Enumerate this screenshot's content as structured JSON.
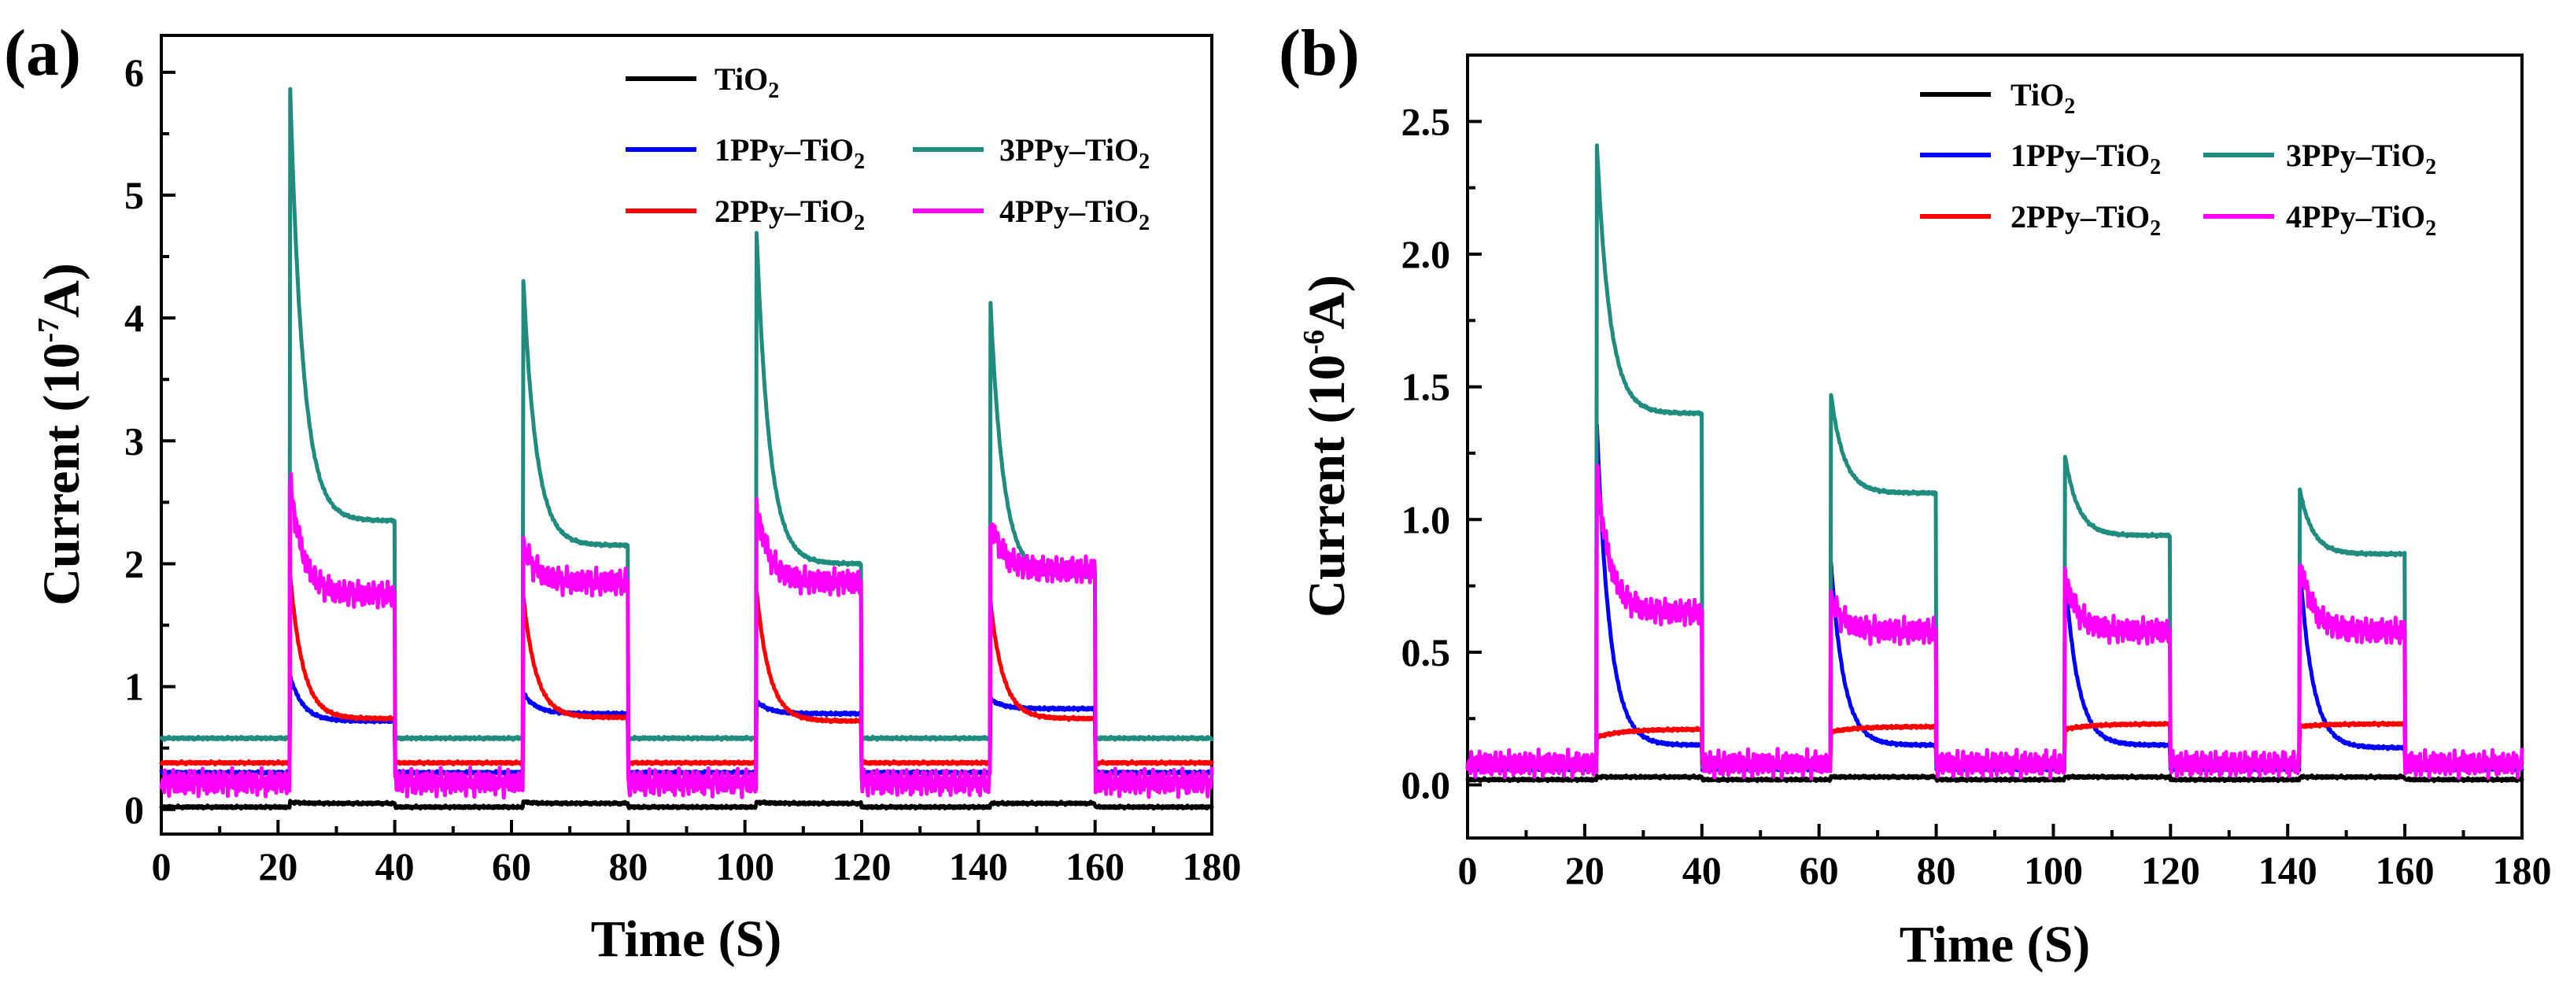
{
  "chart_data": [
    {
      "panel": "(a)",
      "type": "line",
      "xlabel": "Time (S)",
      "ylabel": "Current (10⁻⁷A)",
      "xlim": [
        0,
        180
      ],
      "ylim": [
        -0.2,
        6.3
      ],
      "xticks": [
        "0",
        "20",
        "40",
        "60",
        "80",
        "100",
        "120",
        "140",
        "160",
        "180"
      ],
      "yticks": [
        "0",
        "1",
        "2",
        "3",
        "4",
        "5",
        "6"
      ],
      "light_on_intervals": [
        [
          22,
          40
        ],
        [
          62,
          80
        ],
        [
          102,
          120
        ],
        [
          142,
          160
        ]
      ],
      "legend": [
        "TiO₂",
        "1PPy–TiO₂",
        "3PPy–TiO₂",
        "2PPy–TiO₂",
        "4PPy–TiO₂"
      ],
      "series": [
        {
          "name": "TiO₂",
          "color": "#000000",
          "baseline": 0.02,
          "cycles": [
            {
              "peak": 0.06,
              "end": 0.05
            },
            {
              "peak": 0.06,
              "end": 0.05
            },
            {
              "peak": 0.06,
              "end": 0.05
            },
            {
              "peak": 0.05,
              "end": 0.05
            }
          ]
        },
        {
          "name": "1PPy–TiO₂",
          "color": "#0000ff",
          "baseline": 0.3,
          "cycles": [
            {
              "peak": 1.1,
              "end": 0.72
            },
            {
              "peak": 0.95,
              "end": 0.78
            },
            {
              "peak": 0.88,
              "end": 0.78
            },
            {
              "peak": 0.9,
              "end": 0.82
            }
          ]
        },
        {
          "name": "3PPy–TiO₂",
          "color": "#1f8c7e",
          "baseline": 0.58,
          "cycles": [
            {
              "peak": 6.0,
              "end": 2.35
            },
            {
              "peak": 4.35,
              "end": 2.15
            },
            {
              "peak": 4.7,
              "end": 2.0
            },
            {
              "peak": 4.2,
              "end": 1.9
            }
          ]
        },
        {
          "name": "2PPy–TiO₂",
          "color": "#ff0000",
          "baseline": 0.38,
          "cycles": [
            {
              "peak": 1.95,
              "end": 0.74
            },
            {
              "peak": 1.75,
              "end": 0.75
            },
            {
              "peak": 1.78,
              "end": 0.72
            },
            {
              "peak": 1.72,
              "end": 0.74
            }
          ]
        },
        {
          "name": "4PPy–TiO₂",
          "color": "#ff00ff",
          "baseline": 0.22,
          "cycles": [
            {
              "peak": 2.7,
              "end": 1.75
            },
            {
              "peak": 2.15,
              "end": 1.85
            },
            {
              "peak": 2.45,
              "end": 1.85
            },
            {
              "peak": 2.35,
              "end": 1.95
            }
          ]
        }
      ]
    },
    {
      "panel": "(b)",
      "type": "line",
      "xlabel": "Time (S)",
      "ylabel": "Current (10⁻⁶A)",
      "xlim": [
        0,
        180
      ],
      "ylim": [
        -0.2,
        2.75
      ],
      "xticks": [
        "0",
        "20",
        "40",
        "60",
        "80",
        "100",
        "120",
        "140",
        "160",
        "180"
      ],
      "yticks": [
        "0.0",
        "0.5",
        "1.0",
        "1.5",
        "2.0",
        "2.5"
      ],
      "light_on_intervals": [
        [
          22,
          40
        ],
        [
          62,
          80
        ],
        [
          102,
          120
        ],
        [
          142,
          160
        ]
      ],
      "legend": [
        "TiO₂",
        "1PPy–TiO₂",
        "3PPy–TiO₂",
        "2PPy–TiO₂",
        "4PPy–TiO₂"
      ],
      "series": [
        {
          "name": "TiO₂",
          "color": "#000000",
          "baseline": 0.02,
          "cycles": [
            {
              "peak": 0.03,
              "end": 0.03
            },
            {
              "peak": 0.03,
              "end": 0.03
            },
            {
              "peak": 0.03,
              "end": 0.03
            },
            {
              "peak": 0.03,
              "end": 0.03
            }
          ]
        },
        {
          "name": "1PPy–TiO₂",
          "color": "#0000ff",
          "baseline": 0.06,
          "cycles": [
            {
              "peak": 1.4,
              "end": 0.15
            },
            {
              "peak": 0.85,
              "end": 0.15
            },
            {
              "peak": 0.8,
              "end": 0.15
            },
            {
              "peak": 0.85,
              "end": 0.14
            }
          ]
        },
        {
          "name": "3PPy–TiO₂",
          "color": "#1f8c7e",
          "baseline": 0.07,
          "cycles": [
            {
              "peak": 2.45,
              "end": 1.4
            },
            {
              "peak": 1.48,
              "end": 1.1
            },
            {
              "peak": 1.24,
              "end": 0.94
            },
            {
              "peak": 1.12,
              "end": 0.87
            }
          ]
        },
        {
          "name": "2PPy–TiO₂",
          "color": "#ff0000",
          "baseline": 0.08,
          "cycles": [
            {
              "peak": 0.18,
              "end": 0.21
            },
            {
              "peak": 0.2,
              "end": 0.22
            },
            {
              "peak": 0.21,
              "end": 0.23
            },
            {
              "peak": 0.22,
              "end": 0.23
            }
          ]
        },
        {
          "name": "4PPy–TiO₂",
          "color": "#ff00ff",
          "baseline": 0.08,
          "cycles": [
            {
              "peak": 1.2,
              "end": 0.65
            },
            {
              "peak": 0.7,
              "end": 0.58
            },
            {
              "peak": 0.78,
              "end": 0.58
            },
            {
              "peak": 0.85,
              "end": 0.58
            }
          ]
        }
      ]
    }
  ]
}
